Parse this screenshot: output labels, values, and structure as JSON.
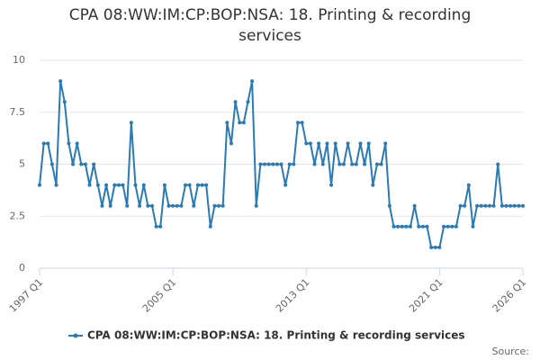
{
  "chart_data": {
    "type": "line",
    "title": "CPA 08:WW:IM:CP:BOP:NSA: 18. Printing & recording services",
    "source": "Source:",
    "categories": [
      "1997 Q1",
      null,
      null,
      null,
      null,
      null,
      null,
      null,
      null,
      null,
      null,
      null,
      null,
      null,
      null,
      null,
      null,
      null,
      null,
      null,
      null,
      null,
      null,
      null,
      null,
      null,
      null,
      null,
      null,
      null,
      null,
      null,
      "2005 Q1",
      null,
      null,
      null,
      null,
      null,
      null,
      null,
      null,
      null,
      null,
      null,
      null,
      null,
      null,
      null,
      null,
      null,
      null,
      null,
      null,
      null,
      null,
      null,
      null,
      null,
      null,
      null,
      null,
      null,
      null,
      null,
      "2013 Q1",
      null,
      null,
      null,
      null,
      null,
      null,
      null,
      null,
      null,
      null,
      null,
      null,
      null,
      null,
      null,
      null,
      null,
      null,
      null,
      null,
      null,
      null,
      null,
      null,
      null,
      null,
      null,
      null,
      null,
      null,
      null,
      "2021 Q1",
      null,
      null,
      null,
      null,
      null,
      null,
      null,
      null,
      null,
      null,
      null,
      null,
      null,
      null,
      null,
      null,
      null,
      null,
      null,
      "2026 Q1"
    ],
    "series": [
      {
        "name": "CPA 08:WW:IM:CP:BOP:NSA: 18. Printing & recording services",
        "color": "#2a7ab5",
        "values": [
          4,
          6,
          6,
          5,
          4,
          9,
          8,
          6,
          5,
          6,
          5,
          5,
          4,
          5,
          4,
          3,
          4,
          3,
          4,
          4,
          4,
          3,
          7,
          4,
          3,
          4,
          3,
          3,
          2,
          2,
          4,
          3,
          3,
          3,
          3,
          4,
          4,
          3,
          4,
          4,
          4,
          2,
          3,
          3,
          3,
          7,
          6,
          8,
          7,
          7,
          8,
          9,
          3,
          5,
          5,
          5,
          5,
          5,
          5,
          4,
          5,
          5,
          7,
          7,
          6,
          6,
          5,
          6,
          5,
          6,
          4,
          6,
          5,
          5,
          6,
          5,
          5,
          6,
          5,
          6,
          4,
          5,
          5,
          6,
          3,
          2,
          2,
          2,
          2,
          2,
          3,
          2,
          2,
          2,
          1,
          1,
          1,
          2,
          2,
          2,
          2,
          3,
          3,
          4,
          2,
          3,
          3,
          3,
          3,
          3,
          5,
          3,
          3,
          3,
          3,
          3,
          3
        ]
      }
    ],
    "ylim": [
      0,
      10
    ],
    "yticks": [
      0,
      2.5,
      5,
      7.5,
      10
    ],
    "grid": true
  }
}
